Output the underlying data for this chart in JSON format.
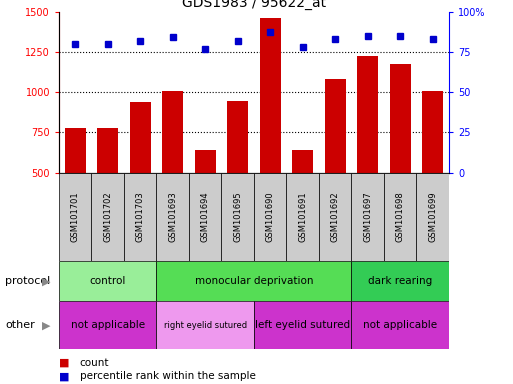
{
  "title": "GDS1983 / 95622_at",
  "samples": [
    "GSM101701",
    "GSM101702",
    "GSM101703",
    "GSM101693",
    "GSM101694",
    "GSM101695",
    "GSM101690",
    "GSM101691",
    "GSM101692",
    "GSM101697",
    "GSM101698",
    "GSM101699"
  ],
  "counts": [
    775,
    775,
    940,
    1005,
    640,
    945,
    1460,
    640,
    1080,
    1225,
    1175,
    1005
  ],
  "percentiles": [
    80,
    80,
    82,
    84,
    77,
    82,
    87,
    78,
    83,
    85,
    85,
    83
  ],
  "bar_color": "#cc0000",
  "dot_color": "#0000cc",
  "ylim_left": [
    500,
    1500
  ],
  "ylim_right": [
    0,
    100
  ],
  "yticks_left": [
    500,
    750,
    1000,
    1250,
    1500
  ],
  "yticks_right": [
    0,
    25,
    50,
    75,
    100
  ],
  "grid_values": [
    750,
    1000,
    1250
  ],
  "protocol_groups": [
    {
      "label": "control",
      "start": 0,
      "end": 3,
      "color": "#99ee99"
    },
    {
      "label": "monocular deprivation",
      "start": 3,
      "end": 9,
      "color": "#55dd55"
    },
    {
      "label": "dark rearing",
      "start": 9,
      "end": 12,
      "color": "#33cc55"
    }
  ],
  "other_groups": [
    {
      "label": "not applicable",
      "start": 0,
      "end": 3,
      "color": "#cc33cc"
    },
    {
      "label": "right eyelid sutured",
      "start": 3,
      "end": 6,
      "color": "#ee99ee"
    },
    {
      "label": "left eyelid sutured",
      "start": 6,
      "end": 9,
      "color": "#cc33cc"
    },
    {
      "label": "not applicable",
      "start": 9,
      "end": 12,
      "color": "#cc33cc"
    }
  ],
  "legend_count_label": "count",
  "legend_pct_label": "percentile rank within the sample",
  "protocol_label": "protocol",
  "other_label": "other"
}
